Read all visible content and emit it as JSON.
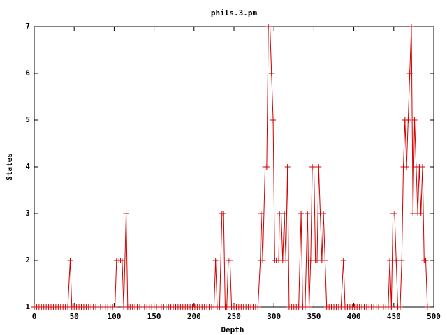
{
  "chart_data": {
    "type": "line",
    "title": "phils.3.pm",
    "x_label": "Depth",
    "y_label": "States",
    "x": [
      0,
      3,
      6,
      9,
      12,
      15,
      18,
      21,
      24,
      27,
      30,
      33,
      36,
      39,
      42,
      45,
      47,
      50,
      53,
      56,
      59,
      62,
      65,
      68,
      71,
      74,
      77,
      80,
      83,
      86,
      89,
      92,
      95,
      98,
      101,
      103,
      106,
      108,
      110,
      112,
      115,
      117,
      120,
      123,
      126,
      129,
      132,
      135,
      138,
      141,
      144,
      147,
      150,
      153,
      156,
      159,
      162,
      165,
      168,
      171,
      174,
      177,
      180,
      183,
      186,
      189,
      192,
      195,
      198,
      201,
      204,
      207,
      210,
      213,
      216,
      219,
      222,
      225,
      227,
      229,
      232,
      235,
      237,
      239,
      241,
      243,
      245,
      247,
      250,
      253,
      256,
      259,
      262,
      265,
      268,
      271,
      274,
      277,
      280,
      283,
      284,
      286,
      289,
      291,
      293,
      295,
      297,
      299,
      301,
      303,
      306,
      307,
      309,
      311,
      313,
      315,
      317,
      319,
      322,
      325,
      328,
      331,
      334,
      336,
      339,
      342,
      344,
      346,
      348,
      350,
      352,
      354,
      356,
      358,
      360,
      362,
      364,
      366,
      369,
      372,
      375,
      378,
      381,
      384,
      387,
      389,
      392,
      395,
      398,
      401,
      404,
      407,
      410,
      413,
      416,
      419,
      422,
      425,
      428,
      431,
      434,
      437,
      440,
      443,
      445,
      447,
      449,
      451,
      453,
      455,
      458,
      460,
      462,
      464,
      466,
      468,
      470,
      472,
      474,
      476,
      478,
      480,
      482,
      484,
      486,
      488,
      490,
      492
    ],
    "series": [
      {
        "color": "#d00000",
        "values": [
          1,
          1,
          1,
          1,
          1,
          1,
          1,
          1,
          1,
          1,
          1,
          1,
          1,
          1,
          1,
          2,
          1,
          1,
          1,
          1,
          1,
          1,
          1,
          1,
          1,
          1,
          1,
          1,
          1,
          1,
          1,
          1,
          1,
          1,
          1,
          2,
          2,
          2,
          2,
          1,
          3,
          1,
          1,
          1,
          1,
          1,
          1,
          1,
          1,
          1,
          1,
          1,
          1,
          1,
          1,
          1,
          1,
          1,
          1,
          1,
          1,
          1,
          1,
          1,
          1,
          1,
          1,
          1,
          1,
          1,
          1,
          1,
          1,
          1,
          1,
          1,
          1,
          1,
          2,
          1,
          1,
          3,
          3,
          1,
          1,
          2,
          2,
          1,
          1,
          1,
          1,
          1,
          1,
          1,
          1,
          1,
          1,
          1,
          1,
          2,
          3,
          2,
          4,
          4,
          7,
          7,
          6,
          5,
          2,
          2,
          2,
          3,
          3,
          2,
          3,
          2,
          4,
          1,
          1,
          1,
          1,
          1,
          3,
          1,
          1,
          3,
          1,
          2,
          4,
          4,
          2,
          2,
          4,
          3,
          2,
          3,
          2,
          1,
          1,
          1,
          1,
          1,
          1,
          1,
          2,
          1,
          1,
          1,
          1,
          1,
          1,
          1,
          1,
          1,
          1,
          1,
          1,
          1,
          1,
          1,
          1,
          1,
          1,
          1,
          2,
          1,
          3,
          3,
          2,
          1,
          1,
          2,
          4,
          5,
          4,
          5,
          6,
          7,
          3,
          5,
          4,
          3,
          4,
          3,
          4,
          2,
          2,
          1
        ]
      }
    ],
    "xlim": [
      0,
      500
    ],
    "xticks": [
      0,
      50,
      100,
      150,
      200,
      250,
      300,
      350,
      400,
      450,
      500
    ],
    "ylim": [
      1,
      7
    ],
    "yticks": [
      1,
      2,
      3,
      4,
      5,
      6,
      7
    ]
  }
}
